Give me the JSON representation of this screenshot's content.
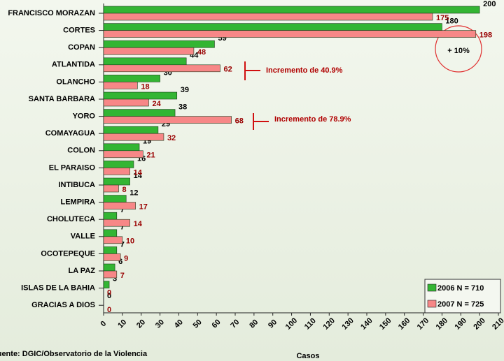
{
  "chart_data": {
    "type": "bar",
    "orientation": "horizontal",
    "categories": [
      "FRANCISCO MORAZAN",
      "CORTES",
      "COPAN",
      "ATLANTIDA",
      "OLANCHO",
      "SANTA BARBARA",
      "YORO",
      "COMAYAGUA",
      "COLON",
      "EL PARAISO",
      "INTIBUCA",
      "LEMPIRA",
      "CHOLUTECA",
      "VALLE",
      "OCOTEPEQUE",
      "LA PAZ",
      "ISLAS DE LA BAHIA",
      "GRACIAS A DIOS"
    ],
    "series": [
      {
        "name": "2006 N = 710",
        "color": "#33b533",
        "label_color": "#000000",
        "values": [
          200,
          180,
          59,
          44,
          30,
          39,
          38,
          29,
          19,
          16,
          14,
          12,
          7,
          7,
          7,
          6,
          3,
          0
        ]
      },
      {
        "name": "2007 N = 725",
        "color": "#f78787",
        "label_color": "#990000",
        "values": [
          175,
          198,
          48,
          62,
          18,
          24,
          68,
          32,
          21,
          14,
          8,
          17,
          14,
          10,
          9,
          7,
          0,
          0
        ]
      }
    ],
    "xlim": [
      0,
      210
    ],
    "xticks": [
      0,
      10,
      20,
      30,
      40,
      50,
      60,
      70,
      80,
      90,
      100,
      110,
      120,
      130,
      140,
      150,
      160,
      170,
      180,
      190,
      200,
      210
    ],
    "xlabel": "Casos",
    "legend": "lower right",
    "annotations": [
      "+ 10%",
      "Incremento de 40.9%",
      "Incremento de 78.9%"
    ],
    "source": "Fuente: DGIC/Observatorio de la Violencia"
  }
}
